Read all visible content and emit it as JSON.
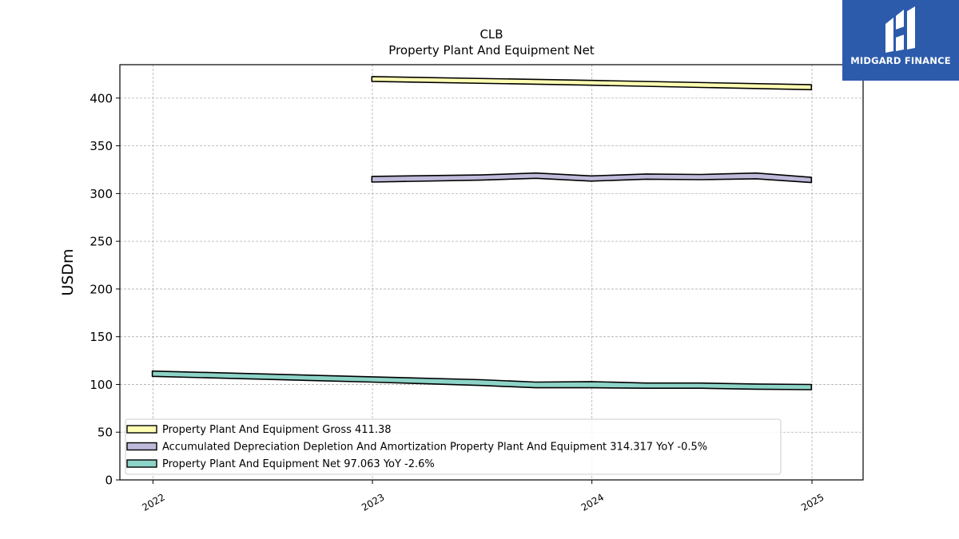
{
  "brand": {
    "name": "MIDGARD FINANCE",
    "bg_color": "#2c5bab"
  },
  "chart_data": {
    "type": "area",
    "title": "CLB",
    "subtitle": "Property Plant And Equipment Net",
    "ylabel": "USDm",
    "xlabel": "",
    "ylim": [
      0,
      435
    ],
    "yticks": [
      0,
      50,
      100,
      150,
      200,
      250,
      300,
      350,
      400
    ],
    "xlim": [
      "2021-11-07",
      "2025-03-27"
    ],
    "xticks": [
      {
        "date": "2022-01-01",
        "label": "2022"
      },
      {
        "date": "2023-01-01",
        "label": "2023"
      },
      {
        "date": "2024-01-01",
        "label": "2024"
      },
      {
        "date": "2025-01-01",
        "label": "2025"
      }
    ],
    "grid": true,
    "legend_position": "lower-left",
    "series": [
      {
        "name": "Property Plant And Equipment Gross",
        "legend_label": "Property Plant And Equipment Gross  411.38",
        "color": "#ffffb3",
        "points": [
          {
            "x": "2022-12-31",
            "lo": 417.5,
            "hi": 422.5
          },
          {
            "x": "2024-01-01",
            "lo": 413.5,
            "hi": 418.5
          },
          {
            "x": "2024-12-31",
            "lo": 408.8,
            "hi": 414.0
          }
        ]
      },
      {
        "name": "Accumulated Depreciation Depletion And Amortization Property Plant And Equipment",
        "legend_label": "Accumulated Depreciation Depletion And Amortization Property Plant And Equipment  314.317 YoY -0.5%",
        "color": "#bebada",
        "points": [
          {
            "x": "2022-12-31",
            "lo": 312.0,
            "hi": 318.0
          },
          {
            "x": "2023-06-30",
            "lo": 314.0,
            "hi": 319.5
          },
          {
            "x": "2023-09-30",
            "lo": 316.0,
            "hi": 321.5
          },
          {
            "x": "2023-12-31",
            "lo": 313.0,
            "hi": 318.5
          },
          {
            "x": "2024-03-31",
            "lo": 315.0,
            "hi": 320.5
          },
          {
            "x": "2024-06-30",
            "lo": 314.5,
            "hi": 320.0
          },
          {
            "x": "2024-09-30",
            "lo": 315.5,
            "hi": 321.5
          },
          {
            "x": "2024-12-31",
            "lo": 311.5,
            "hi": 317.0
          }
        ]
      },
      {
        "name": "Property Plant And Equipment Net",
        "legend_label": "Property Plant And Equipment Net  97.063 YoY -2.6%",
        "color": "#8dd3c7",
        "points": [
          {
            "x": "2021-12-31",
            "lo": 108.5,
            "hi": 114.0
          },
          {
            "x": "2022-12-31",
            "lo": 102.5,
            "hi": 108.0
          },
          {
            "x": "2023-06-30",
            "lo": 99.0,
            "hi": 105.0
          },
          {
            "x": "2023-09-30",
            "lo": 96.5,
            "hi": 102.5
          },
          {
            "x": "2023-12-31",
            "lo": 96.5,
            "hi": 103.0
          },
          {
            "x": "2024-03-31",
            "lo": 96.0,
            "hi": 101.5
          },
          {
            "x": "2024-06-30",
            "lo": 96.0,
            "hi": 101.5
          },
          {
            "x": "2024-09-30",
            "lo": 95.0,
            "hi": 100.5
          },
          {
            "x": "2024-12-31",
            "lo": 94.5,
            "hi": 100.0
          }
        ]
      }
    ]
  }
}
